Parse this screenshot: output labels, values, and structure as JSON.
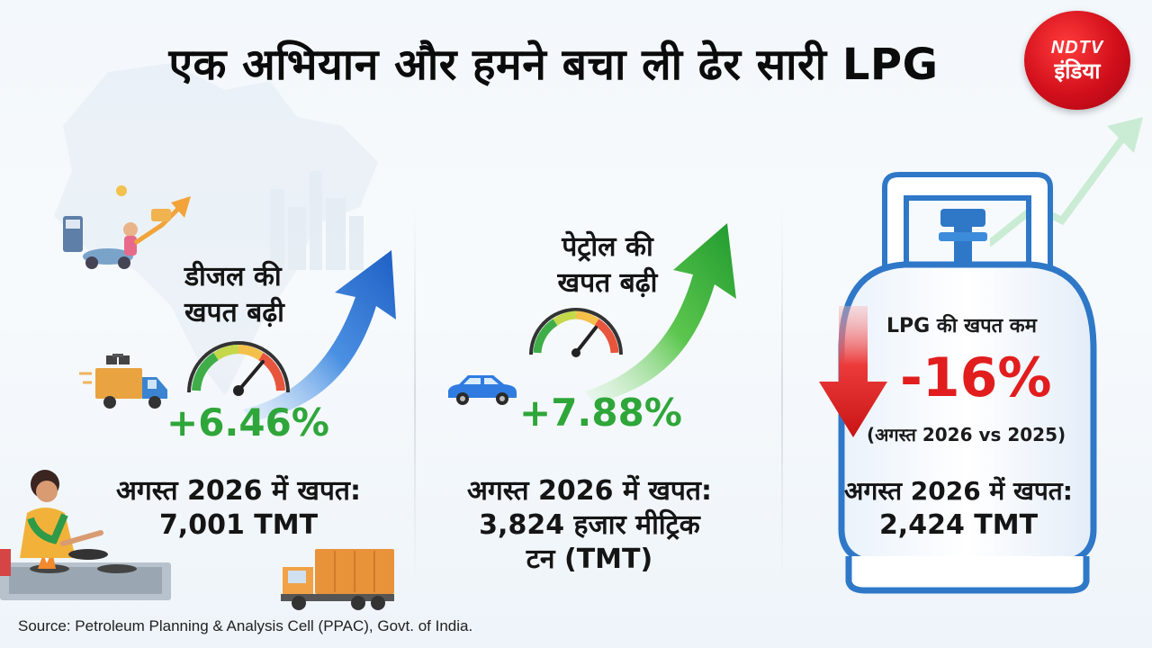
{
  "title": "एक अभियान और हमने बचा ली ढेर सारी LPG",
  "logo": {
    "line1": "NDTV",
    "line2": "इंडिया"
  },
  "diesel": {
    "heading_line1": "डीजल की",
    "heading_line2": "खपत बढ़ी",
    "change": "+6.46%",
    "stat_label": "अगस्त 2026 में खपत:",
    "stat_value": "7,001 TMT"
  },
  "petrol": {
    "heading_line1": "पेट्रोल की",
    "heading_line2": "खपत बढ़ी",
    "change": "+7.88%",
    "stat_label": "अगस्त 2026 में खपत:",
    "stat_value_line1": "3,824 हजार मीट्रिक",
    "stat_value_line2": "टन (TMT)"
  },
  "lpg": {
    "heading": "LPG की खपत कम",
    "change": "-16%",
    "comparison": "(अगस्त 2026 vs 2025)",
    "stat_label": "अगस्त 2026 में खपत:",
    "stat_value": "2,424 TMT"
  },
  "source": "Source: Petroleum Planning & Analysis Cell (PPAC), Govt. of India.",
  "colors": {
    "growth_green": "#2fa63a",
    "decline_red": "#e11d1d",
    "diesel_arrow_blue": "#2f7be0",
    "cylinder_blue": "#2f78c8",
    "brand_red": "#d10f1b"
  },
  "icons": {
    "diesel_vehicle": "delivery-truck-icon",
    "petrol_vehicle": "car-icon",
    "diesel_trend": "rising-arrow-icon",
    "petrol_trend": "rising-arrow-icon",
    "lpg_trend": "falling-arrow-icon",
    "gauge": "speedometer-icon",
    "cylinder": "lpg-cylinder-icon",
    "cooking": "woman-cooking-icon",
    "cargo": "cargo-truck-icon"
  }
}
